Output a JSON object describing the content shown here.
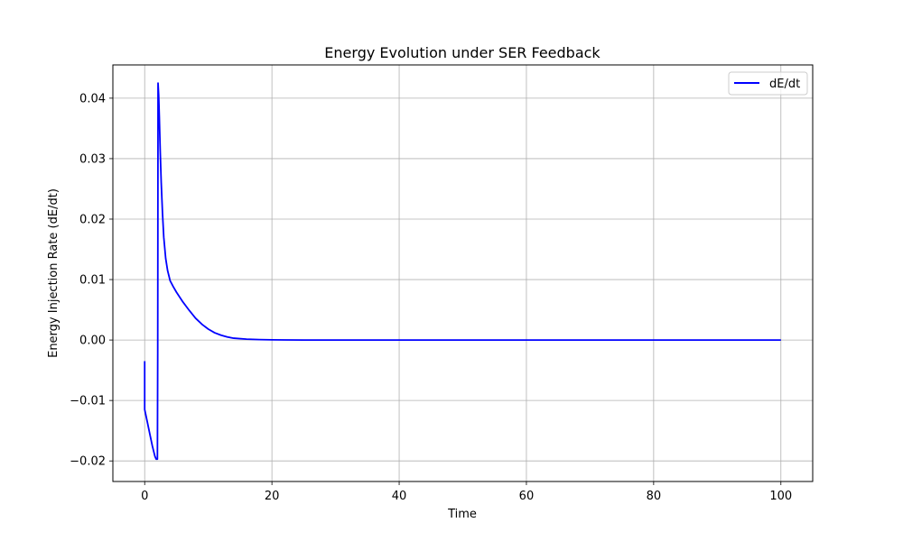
{
  "chart_data": {
    "type": "line",
    "title": "Energy Evolution under SER Feedback",
    "xlabel": "Time",
    "ylabel": "Energy Injection Rate (dE/dt)",
    "xlim": [
      -5,
      105
    ],
    "ylim": [
      -0.0234,
      0.0455
    ],
    "xticks": [
      0,
      20,
      40,
      60,
      80,
      100
    ],
    "xtick_labels": [
      "0",
      "20",
      "40",
      "60",
      "80",
      "100"
    ],
    "yticks": [
      -0.02,
      -0.01,
      0.0,
      0.01,
      0.02,
      0.03,
      0.04
    ],
    "ytick_labels": [
      "−0.02",
      "−0.01",
      "0.00",
      "0.01",
      "0.02",
      "0.03",
      "0.04"
    ],
    "grid": true,
    "legend_position": "top-right",
    "series": [
      {
        "name": "dE/dt",
        "color": "#0000ff",
        "x": [
          0,
          0,
          0.1,
          0.4,
          0.8,
          1.2,
          1.6,
          1.8,
          2.0,
          2.05,
          2.1,
          2.2,
          2.3,
          2.45,
          2.6,
          2.8,
          3.0,
          3.3,
          3.6,
          4.0,
          4.5,
          5.0,
          6.0,
          7.0,
          8.0,
          9.0,
          10.0,
          11.0,
          12.0,
          13.0,
          14.0,
          16.0,
          18.0,
          20.0,
          22.0,
          25.0,
          30.0,
          40.0,
          60.0,
          80.0,
          100.0
        ],
        "y": [
          -0.0035,
          -0.0115,
          -0.012,
          -0.0135,
          -0.0155,
          -0.0175,
          -0.0192,
          -0.0197,
          -0.0197,
          -0.002,
          0.0425,
          0.0405,
          0.037,
          0.031,
          0.026,
          0.021,
          0.017,
          0.0135,
          0.0115,
          0.0098,
          0.0088,
          0.0079,
          0.0063,
          0.0049,
          0.0036,
          0.0026,
          0.0018,
          0.0012,
          0.0008,
          0.0005,
          0.0003,
          0.00015,
          7e-05,
          3e-05,
          1e-05,
          0.0,
          0.0,
          0.0,
          0.0,
          0.0,
          0.0
        ]
      }
    ]
  }
}
